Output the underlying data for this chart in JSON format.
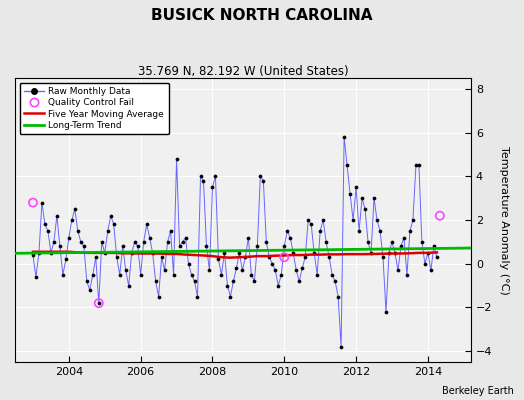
{
  "title": "BUSICK NORTH CAROLINA",
  "subtitle": "35.769 N, 82.192 W (United States)",
  "ylabel": "Temperature Anomaly (°C)",
  "credit": "Berkeley Earth",
  "xlim": [
    2002.5,
    2015.2
  ],
  "ylim": [
    -4.5,
    8.5
  ],
  "yticks": [
    -4,
    -2,
    0,
    2,
    4,
    6,
    8
  ],
  "xticks": [
    2004,
    2006,
    2008,
    2010,
    2012,
    2014
  ],
  "bg_color": "#e8e8e8",
  "plot_bg_color": "#f0f0f0",
  "raw_color": "#6666ff",
  "raw_dot_color": "#000000",
  "qc_color": "#ff44ff",
  "moving_avg_color": "#dd0000",
  "trend_color": "#00bb00",
  "raw_data": [
    [
      2003.0,
      0.4
    ],
    [
      2003.083,
      -0.6
    ],
    [
      2003.167,
      0.5
    ],
    [
      2003.25,
      2.8
    ],
    [
      2003.333,
      1.8
    ],
    [
      2003.417,
      1.5
    ],
    [
      2003.5,
      0.5
    ],
    [
      2003.583,
      1.0
    ],
    [
      2003.667,
      2.2
    ],
    [
      2003.75,
      0.8
    ],
    [
      2003.833,
      -0.5
    ],
    [
      2003.917,
      0.2
    ],
    [
      2004.0,
      1.2
    ],
    [
      2004.083,
      2.0
    ],
    [
      2004.167,
      2.5
    ],
    [
      2004.25,
      1.5
    ],
    [
      2004.333,
      1.0
    ],
    [
      2004.417,
      0.8
    ],
    [
      2004.5,
      -0.8
    ],
    [
      2004.583,
      -1.2
    ],
    [
      2004.667,
      -0.5
    ],
    [
      2004.75,
      0.3
    ],
    [
      2004.833,
      -1.8
    ],
    [
      2004.917,
      1.0
    ],
    [
      2005.0,
      0.5
    ],
    [
      2005.083,
      1.5
    ],
    [
      2005.167,
      2.2
    ],
    [
      2005.25,
      1.8
    ],
    [
      2005.333,
      0.3
    ],
    [
      2005.417,
      -0.5
    ],
    [
      2005.5,
      0.8
    ],
    [
      2005.583,
      -0.3
    ],
    [
      2005.667,
      -1.0
    ],
    [
      2005.75,
      0.5
    ],
    [
      2005.833,
      1.0
    ],
    [
      2005.917,
      0.8
    ],
    [
      2006.0,
      -0.5
    ],
    [
      2006.083,
      1.0
    ],
    [
      2006.167,
      1.8
    ],
    [
      2006.25,
      1.2
    ],
    [
      2006.333,
      0.5
    ],
    [
      2006.417,
      -0.8
    ],
    [
      2006.5,
      -1.5
    ],
    [
      2006.583,
      0.3
    ],
    [
      2006.667,
      -0.3
    ],
    [
      2006.75,
      1.0
    ],
    [
      2006.833,
      1.5
    ],
    [
      2006.917,
      -0.5
    ],
    [
      2007.0,
      4.8
    ],
    [
      2007.083,
      0.8
    ],
    [
      2007.167,
      1.0
    ],
    [
      2007.25,
      1.2
    ],
    [
      2007.333,
      0.0
    ],
    [
      2007.417,
      -0.5
    ],
    [
      2007.5,
      -0.8
    ],
    [
      2007.583,
      -1.5
    ],
    [
      2007.667,
      4.0
    ],
    [
      2007.75,
      3.8
    ],
    [
      2007.833,
      0.8
    ],
    [
      2007.917,
      -0.3
    ],
    [
      2008.0,
      3.5
    ],
    [
      2008.083,
      4.0
    ],
    [
      2008.167,
      0.2
    ],
    [
      2008.25,
      -0.5
    ],
    [
      2008.333,
      0.5
    ],
    [
      2008.417,
      -1.0
    ],
    [
      2008.5,
      -1.5
    ],
    [
      2008.583,
      -0.8
    ],
    [
      2008.667,
      -0.2
    ],
    [
      2008.75,
      0.5
    ],
    [
      2008.833,
      -0.3
    ],
    [
      2008.917,
      0.3
    ],
    [
      2009.0,
      1.2
    ],
    [
      2009.083,
      -0.5
    ],
    [
      2009.167,
      -0.8
    ],
    [
      2009.25,
      0.8
    ],
    [
      2009.333,
      4.0
    ],
    [
      2009.417,
      3.8
    ],
    [
      2009.5,
      1.0
    ],
    [
      2009.583,
      0.3
    ],
    [
      2009.667,
      0.0
    ],
    [
      2009.75,
      -0.3
    ],
    [
      2009.833,
      -1.0
    ],
    [
      2009.917,
      -0.5
    ],
    [
      2010.0,
      0.8
    ],
    [
      2010.083,
      1.5
    ],
    [
      2010.167,
      1.2
    ],
    [
      2010.25,
      0.5
    ],
    [
      2010.333,
      -0.3
    ],
    [
      2010.417,
      -0.8
    ],
    [
      2010.5,
      -0.2
    ],
    [
      2010.583,
      0.3
    ],
    [
      2010.667,
      2.0
    ],
    [
      2010.75,
      1.8
    ],
    [
      2010.833,
      0.5
    ],
    [
      2010.917,
      -0.5
    ],
    [
      2011.0,
      1.5
    ],
    [
      2011.083,
      2.0
    ],
    [
      2011.167,
      1.0
    ],
    [
      2011.25,
      0.3
    ],
    [
      2011.333,
      -0.5
    ],
    [
      2011.417,
      -0.8
    ],
    [
      2011.5,
      -1.5
    ],
    [
      2011.583,
      -3.8
    ],
    [
      2011.667,
      5.8
    ],
    [
      2011.75,
      4.5
    ],
    [
      2011.833,
      3.2
    ],
    [
      2011.917,
      2.0
    ],
    [
      2012.0,
      3.5
    ],
    [
      2012.083,
      1.5
    ],
    [
      2012.167,
      3.0
    ],
    [
      2012.25,
      2.5
    ],
    [
      2012.333,
      1.0
    ],
    [
      2012.417,
      0.5
    ],
    [
      2012.5,
      3.0
    ],
    [
      2012.583,
      2.0
    ],
    [
      2012.667,
      1.5
    ],
    [
      2012.75,
      0.3
    ],
    [
      2012.833,
      -2.2
    ],
    [
      2012.917,
      0.5
    ],
    [
      2013.0,
      1.0
    ],
    [
      2013.083,
      0.5
    ],
    [
      2013.167,
      -0.3
    ],
    [
      2013.25,
      0.8
    ],
    [
      2013.333,
      1.2
    ],
    [
      2013.417,
      -0.5
    ],
    [
      2013.5,
      1.5
    ],
    [
      2013.583,
      2.0
    ],
    [
      2013.667,
      4.5
    ],
    [
      2013.75,
      4.5
    ],
    [
      2013.833,
      1.0
    ],
    [
      2013.917,
      0.0
    ],
    [
      2014.0,
      0.5
    ],
    [
      2014.083,
      -0.3
    ],
    [
      2014.167,
      0.8
    ],
    [
      2014.25,
      0.3
    ]
  ],
  "qc_fail_points": [
    [
      2003.0,
      2.8
    ],
    [
      2004.833,
      -1.8
    ],
    [
      2010.0,
      0.3
    ],
    [
      2014.333,
      2.2
    ]
  ],
  "moving_avg": [
    [
      2003.0,
      0.55
    ],
    [
      2003.25,
      0.55
    ],
    [
      2003.5,
      0.55
    ],
    [
      2003.75,
      0.55
    ],
    [
      2004.0,
      0.55
    ],
    [
      2004.25,
      0.52
    ],
    [
      2004.5,
      0.5
    ],
    [
      2004.75,
      0.5
    ],
    [
      2005.0,
      0.5
    ],
    [
      2005.25,
      0.5
    ],
    [
      2005.5,
      0.48
    ],
    [
      2005.75,
      0.48
    ],
    [
      2006.0,
      0.47
    ],
    [
      2006.25,
      0.47
    ],
    [
      2006.5,
      0.47
    ],
    [
      2006.75,
      0.45
    ],
    [
      2007.0,
      0.45
    ],
    [
      2007.25,
      0.42
    ],
    [
      2007.5,
      0.4
    ],
    [
      2007.75,
      0.38
    ],
    [
      2008.0,
      0.35
    ],
    [
      2008.25,
      0.3
    ],
    [
      2008.5,
      0.28
    ],
    [
      2008.75,
      0.3
    ],
    [
      2009.0,
      0.32
    ],
    [
      2009.25,
      0.35
    ],
    [
      2009.5,
      0.35
    ],
    [
      2009.75,
      0.37
    ],
    [
      2010.0,
      0.38
    ],
    [
      2010.25,
      0.4
    ],
    [
      2010.5,
      0.4
    ],
    [
      2010.75,
      0.42
    ],
    [
      2011.0,
      0.42
    ],
    [
      2011.25,
      0.43
    ],
    [
      2011.5,
      0.43
    ],
    [
      2011.75,
      0.44
    ],
    [
      2012.0,
      0.44
    ],
    [
      2012.25,
      0.44
    ],
    [
      2012.5,
      0.45
    ],
    [
      2012.75,
      0.46
    ],
    [
      2013.0,
      0.47
    ],
    [
      2013.25,
      0.47
    ],
    [
      2013.5,
      0.48
    ],
    [
      2013.75,
      0.5
    ],
    [
      2014.0,
      0.5
    ],
    [
      2014.25,
      0.52
    ]
  ],
  "trend_x": [
    2002.5,
    2015.2
  ],
  "trend_y": [
    0.48,
    0.72
  ],
  "figsize": [
    5.24,
    4.0
  ],
  "dpi": 100
}
